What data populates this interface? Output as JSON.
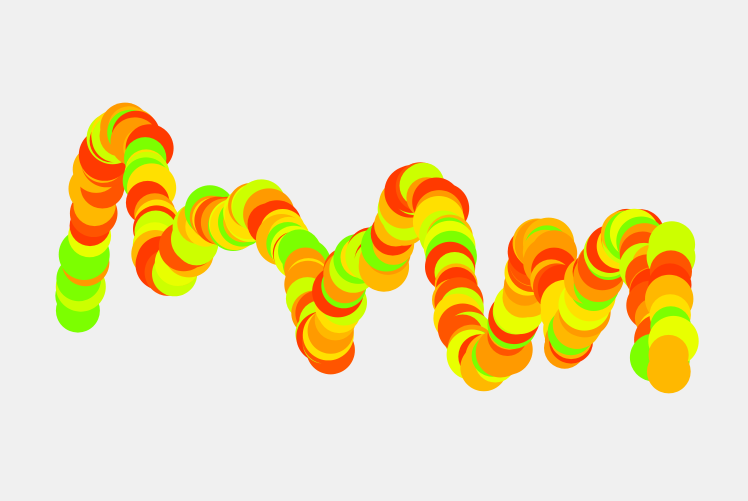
{
  "background_color": "#f0f0f0",
  "palette": [
    "#ff3a00",
    "#ff9a00",
    "#ffe000",
    "#e8ff00",
    "#7cff00",
    "#ff5500",
    "#ffb800",
    "#ccff00"
  ],
  "subject": {
    "shape": "squiggle-chain-of-circles",
    "count_hint": 260
  }
}
